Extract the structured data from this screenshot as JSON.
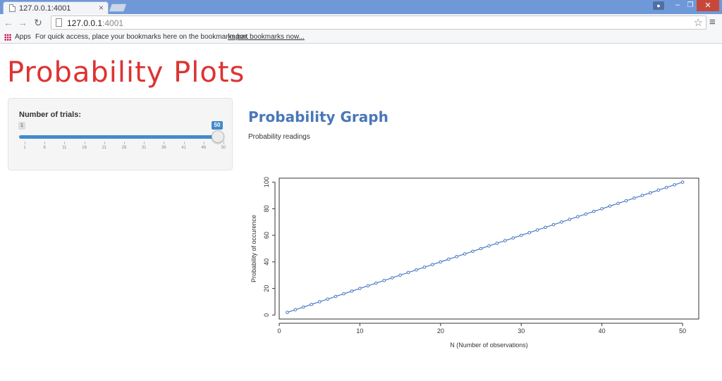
{
  "browser": {
    "tab_title": "127.0.0.1:4001",
    "url_host": "127.0.0.1",
    "url_port": ":4001",
    "bookmarks_apps": "Apps",
    "bookmarks_message": "For quick access, place your bookmarks here on the bookmarks bar.",
    "bookmarks_import": "Import bookmarks now..."
  },
  "page": {
    "title": "Probability Plots",
    "title_color": "#dd3333"
  },
  "sidebar": {
    "slider_label": "Number of trials:",
    "min": 1,
    "max": 50,
    "value": 50,
    "min_label": "1",
    "value_label": "50",
    "tick_labels": [
      "1",
      "6",
      "11",
      "16",
      "21",
      "26",
      "31",
      "36",
      "41",
      "46",
      "50"
    ]
  },
  "main": {
    "heading": "Probability Graph",
    "subheading": "Probability readings"
  },
  "chart_data": {
    "type": "line",
    "markers": "open-circle",
    "color": "#4a77c8",
    "xlabel": "N (Number of observations)",
    "ylabel": "Probability of occurence",
    "xlim": [
      0,
      52
    ],
    "ylim": [
      -3,
      103
    ],
    "x_ticks": [
      0,
      10,
      20,
      30,
      40,
      50
    ],
    "y_ticks": [
      0,
      20,
      40,
      60,
      80,
      100
    ],
    "x": [
      1,
      2,
      3,
      4,
      5,
      6,
      7,
      8,
      9,
      10,
      11,
      12,
      13,
      14,
      15,
      16,
      17,
      18,
      19,
      20,
      21,
      22,
      23,
      24,
      25,
      26,
      27,
      28,
      29,
      30,
      31,
      32,
      33,
      34,
      35,
      36,
      37,
      38,
      39,
      40,
      41,
      42,
      43,
      44,
      45,
      46,
      47,
      48,
      49,
      50
    ],
    "y": [
      2,
      4,
      6,
      8,
      10,
      12,
      14,
      16,
      18,
      20,
      22,
      24,
      26,
      28,
      30,
      32,
      34,
      36,
      38,
      40,
      42,
      44,
      46,
      48,
      50,
      52,
      54,
      56,
      58,
      60,
      62,
      64,
      66,
      68,
      70,
      72,
      74,
      76,
      78,
      80,
      82,
      84,
      86,
      88,
      90,
      92,
      94,
      96,
      98,
      100
    ]
  }
}
